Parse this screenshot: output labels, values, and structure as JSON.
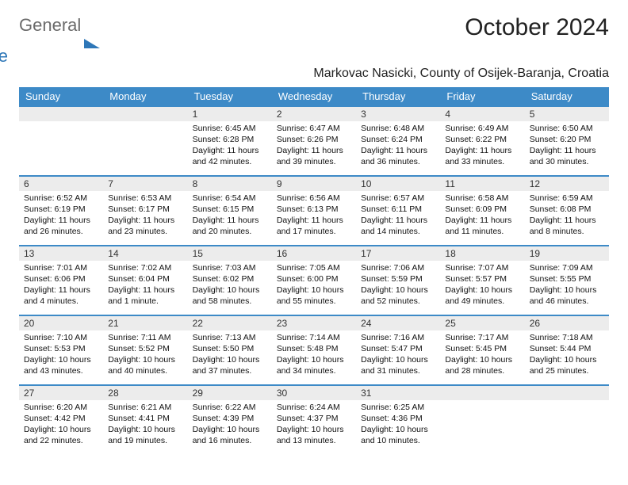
{
  "logo": {
    "word1": "General",
    "word2": "Blue"
  },
  "title": "October 2024",
  "subtitle": "Markovac Nasicki, County of Osijek-Baranja, Croatia",
  "colors": {
    "header_bg": "#3d8ac7",
    "header_fg": "#ffffff",
    "daynum_bg": "#ececec",
    "row_border": "#3d8ac7",
    "logo_gray": "#6b6b6b",
    "logo_blue": "#2e77b8"
  },
  "daynames": [
    "Sunday",
    "Monday",
    "Tuesday",
    "Wednesday",
    "Thursday",
    "Friday",
    "Saturday"
  ],
  "weeks": [
    [
      {
        "n": "",
        "lines": []
      },
      {
        "n": "",
        "lines": []
      },
      {
        "n": "1",
        "lines": [
          "Sunrise: 6:45 AM",
          "Sunset: 6:28 PM",
          "Daylight: 11 hours",
          "and 42 minutes."
        ]
      },
      {
        "n": "2",
        "lines": [
          "Sunrise: 6:47 AM",
          "Sunset: 6:26 PM",
          "Daylight: 11 hours",
          "and 39 minutes."
        ]
      },
      {
        "n": "3",
        "lines": [
          "Sunrise: 6:48 AM",
          "Sunset: 6:24 PM",
          "Daylight: 11 hours",
          "and 36 minutes."
        ]
      },
      {
        "n": "4",
        "lines": [
          "Sunrise: 6:49 AM",
          "Sunset: 6:22 PM",
          "Daylight: 11 hours",
          "and 33 minutes."
        ]
      },
      {
        "n": "5",
        "lines": [
          "Sunrise: 6:50 AM",
          "Sunset: 6:20 PM",
          "Daylight: 11 hours",
          "and 30 minutes."
        ]
      }
    ],
    [
      {
        "n": "6",
        "lines": [
          "Sunrise: 6:52 AM",
          "Sunset: 6:19 PM",
          "Daylight: 11 hours",
          "and 26 minutes."
        ]
      },
      {
        "n": "7",
        "lines": [
          "Sunrise: 6:53 AM",
          "Sunset: 6:17 PM",
          "Daylight: 11 hours",
          "and 23 minutes."
        ]
      },
      {
        "n": "8",
        "lines": [
          "Sunrise: 6:54 AM",
          "Sunset: 6:15 PM",
          "Daylight: 11 hours",
          "and 20 minutes."
        ]
      },
      {
        "n": "9",
        "lines": [
          "Sunrise: 6:56 AM",
          "Sunset: 6:13 PM",
          "Daylight: 11 hours",
          "and 17 minutes."
        ]
      },
      {
        "n": "10",
        "lines": [
          "Sunrise: 6:57 AM",
          "Sunset: 6:11 PM",
          "Daylight: 11 hours",
          "and 14 minutes."
        ]
      },
      {
        "n": "11",
        "lines": [
          "Sunrise: 6:58 AM",
          "Sunset: 6:09 PM",
          "Daylight: 11 hours",
          "and 11 minutes."
        ]
      },
      {
        "n": "12",
        "lines": [
          "Sunrise: 6:59 AM",
          "Sunset: 6:08 PM",
          "Daylight: 11 hours",
          "and 8 minutes."
        ]
      }
    ],
    [
      {
        "n": "13",
        "lines": [
          "Sunrise: 7:01 AM",
          "Sunset: 6:06 PM",
          "Daylight: 11 hours",
          "and 4 minutes."
        ]
      },
      {
        "n": "14",
        "lines": [
          "Sunrise: 7:02 AM",
          "Sunset: 6:04 PM",
          "Daylight: 11 hours",
          "and 1 minute."
        ]
      },
      {
        "n": "15",
        "lines": [
          "Sunrise: 7:03 AM",
          "Sunset: 6:02 PM",
          "Daylight: 10 hours",
          "and 58 minutes."
        ]
      },
      {
        "n": "16",
        "lines": [
          "Sunrise: 7:05 AM",
          "Sunset: 6:00 PM",
          "Daylight: 10 hours",
          "and 55 minutes."
        ]
      },
      {
        "n": "17",
        "lines": [
          "Sunrise: 7:06 AM",
          "Sunset: 5:59 PM",
          "Daylight: 10 hours",
          "and 52 minutes."
        ]
      },
      {
        "n": "18",
        "lines": [
          "Sunrise: 7:07 AM",
          "Sunset: 5:57 PM",
          "Daylight: 10 hours",
          "and 49 minutes."
        ]
      },
      {
        "n": "19",
        "lines": [
          "Sunrise: 7:09 AM",
          "Sunset: 5:55 PM",
          "Daylight: 10 hours",
          "and 46 minutes."
        ]
      }
    ],
    [
      {
        "n": "20",
        "lines": [
          "Sunrise: 7:10 AM",
          "Sunset: 5:53 PM",
          "Daylight: 10 hours",
          "and 43 minutes."
        ]
      },
      {
        "n": "21",
        "lines": [
          "Sunrise: 7:11 AM",
          "Sunset: 5:52 PM",
          "Daylight: 10 hours",
          "and 40 minutes."
        ]
      },
      {
        "n": "22",
        "lines": [
          "Sunrise: 7:13 AM",
          "Sunset: 5:50 PM",
          "Daylight: 10 hours",
          "and 37 minutes."
        ]
      },
      {
        "n": "23",
        "lines": [
          "Sunrise: 7:14 AM",
          "Sunset: 5:48 PM",
          "Daylight: 10 hours",
          "and 34 minutes."
        ]
      },
      {
        "n": "24",
        "lines": [
          "Sunrise: 7:16 AM",
          "Sunset: 5:47 PM",
          "Daylight: 10 hours",
          "and 31 minutes."
        ]
      },
      {
        "n": "25",
        "lines": [
          "Sunrise: 7:17 AM",
          "Sunset: 5:45 PM",
          "Daylight: 10 hours",
          "and 28 minutes."
        ]
      },
      {
        "n": "26",
        "lines": [
          "Sunrise: 7:18 AM",
          "Sunset: 5:44 PM",
          "Daylight: 10 hours",
          "and 25 minutes."
        ]
      }
    ],
    [
      {
        "n": "27",
        "lines": [
          "Sunrise: 6:20 AM",
          "Sunset: 4:42 PM",
          "Daylight: 10 hours",
          "and 22 minutes."
        ]
      },
      {
        "n": "28",
        "lines": [
          "Sunrise: 6:21 AM",
          "Sunset: 4:41 PM",
          "Daylight: 10 hours",
          "and 19 minutes."
        ]
      },
      {
        "n": "29",
        "lines": [
          "Sunrise: 6:22 AM",
          "Sunset: 4:39 PM",
          "Daylight: 10 hours",
          "and 16 minutes."
        ]
      },
      {
        "n": "30",
        "lines": [
          "Sunrise: 6:24 AM",
          "Sunset: 4:37 PM",
          "Daylight: 10 hours",
          "and 13 minutes."
        ]
      },
      {
        "n": "31",
        "lines": [
          "Sunrise: 6:25 AM",
          "Sunset: 4:36 PM",
          "Daylight: 10 hours",
          "and 10 minutes."
        ]
      },
      {
        "n": "",
        "lines": []
      },
      {
        "n": "",
        "lines": []
      }
    ]
  ]
}
